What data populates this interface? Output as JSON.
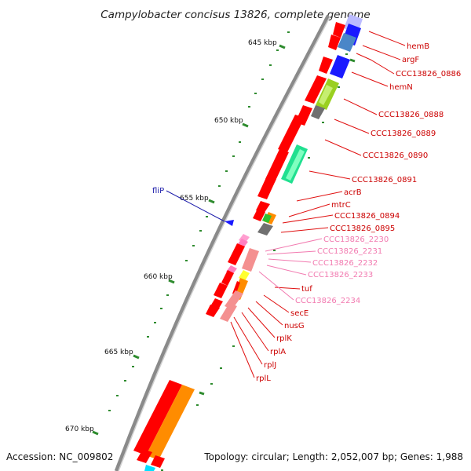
{
  "title": "Campylobacter concisus 13826, complete genome",
  "footer": {
    "accession": "Accession: NC_009802",
    "topology": "Topology: circular; Length: 2,052,007 bp; Genes: 1,988"
  },
  "colors": {
    "backbone": "#8a8a8a",
    "tick": "#2e8b2e",
    "gene_label": "#cc0000",
    "gene_label_light": "#f27ab0",
    "gene_label_blue": "#1a1aaa"
  },
  "ticks": [
    {
      "label": "645 kbp"
    },
    {
      "label": "650 kbp"
    },
    {
      "label": "655 kbp"
    },
    {
      "label": "660 kbp"
    },
    {
      "label": "665 kbp"
    },
    {
      "label": "670 kbp"
    }
  ],
  "gene_labels": [
    {
      "text": "hemB",
      "tone": "red"
    },
    {
      "text": "argF",
      "tone": "red"
    },
    {
      "text": "CCC13826_0886",
      "tone": "red"
    },
    {
      "text": "hemN",
      "tone": "red"
    },
    {
      "text": "CCC13826_0888",
      "tone": "red"
    },
    {
      "text": "CCC13826_0889",
      "tone": "red"
    },
    {
      "text": "CCC13826_0890",
      "tone": "red"
    },
    {
      "text": "CCC13826_0891",
      "tone": "red"
    },
    {
      "text": "acrB",
      "tone": "red"
    },
    {
      "text": "mtrC",
      "tone": "red"
    },
    {
      "text": "CCC13826_0894",
      "tone": "red"
    },
    {
      "text": "CCC13826_0895",
      "tone": "red"
    },
    {
      "text": "CCC13826_2230",
      "tone": "light"
    },
    {
      "text": "CCC13826_2231",
      "tone": "light"
    },
    {
      "text": "CCC13826_2232",
      "tone": "light"
    },
    {
      "text": "CCC13826_2233",
      "tone": "light"
    },
    {
      "text": "tuf",
      "tone": "red"
    },
    {
      "text": "CCC13826_2234",
      "tone": "light"
    },
    {
      "text": "secE",
      "tone": "red"
    },
    {
      "text": "nusG",
      "tone": "red"
    },
    {
      "text": "rplK",
      "tone": "red"
    },
    {
      "text": "rplA",
      "tone": "red"
    },
    {
      "text": "rplJ",
      "tone": "red"
    },
    {
      "text": "rplL",
      "tone": "red"
    },
    {
      "text": "fliP",
      "tone": "blue"
    }
  ]
}
